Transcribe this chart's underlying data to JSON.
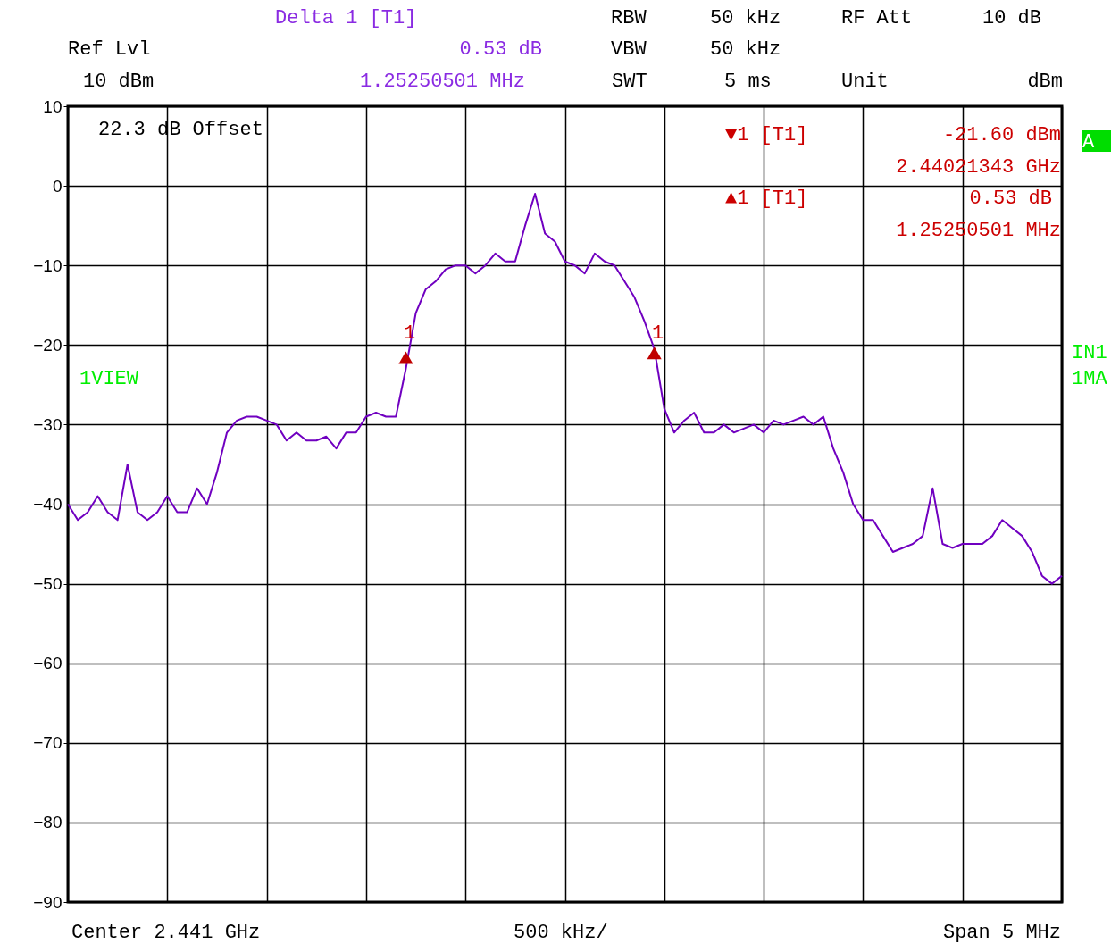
{
  "chart_data": {
    "type": "line",
    "categories": [
      null,
      null,
      null,
      null,
      null,
      null,
      null,
      null,
      null,
      null,
      null,
      null,
      null,
      null,
      null,
      null,
      null,
      null,
      null,
      null,
      null,
      null,
      null,
      null,
      null,
      null,
      null,
      null,
      null,
      null,
      null,
      null,
      null,
      null,
      null,
      null,
      null,
      null,
      null,
      null,
      null,
      null,
      null,
      null,
      null,
      null,
      null,
      null,
      null,
      null,
      null,
      null,
      null,
      null,
      null,
      null,
      null,
      null,
      null,
      null,
      null,
      null,
      null,
      null,
      null,
      null,
      null,
      null,
      null,
      null,
      null,
      null,
      null,
      null,
      null,
      null,
      null,
      null,
      null,
      null,
      null,
      null,
      null,
      null,
      null,
      null,
      null,
      null,
      null,
      null,
      null,
      null,
      null,
      null,
      null,
      null,
      null,
      null,
      null,
      null,
      null
    ],
    "series": [
      {
        "color": "#7000c0",
        "values": [
          -40,
          -42,
          -41,
          -39,
          -41,
          -42,
          -35,
          -41,
          -42,
          -41,
          -39,
          -41,
          -41,
          -38,
          -40,
          -36,
          -31,
          -29.5,
          -29,
          -29,
          -29.5,
          -30,
          -32,
          -31,
          -32,
          -32,
          -31.5,
          -33,
          -31,
          -31,
          -29,
          -28.5,
          -29,
          -29,
          -23,
          -16,
          -13,
          -12,
          -10.5,
          -10,
          -10,
          -11,
          -10,
          -8.5,
          -9.5,
          -9.5,
          -5,
          -1,
          -6,
          -7,
          -9.5,
          -10,
          -11,
          -8.5,
          -9.5,
          -10,
          -12,
          -14,
          -17,
          -20.5,
          -28,
          -31,
          -29.5,
          -28.5,
          -31,
          -31,
          -30,
          -31,
          -30.5,
          -30,
          -31,
          -29.5,
          -30,
          -29.5,
          -29,
          -30,
          -29,
          -33,
          -36,
          -40,
          -42,
          -42,
          -44,
          -46,
          -45.5,
          -45,
          -44,
          -38,
          -45,
          -45.5,
          -45,
          -45,
          -45,
          -44,
          -42,
          -43,
          -44,
          -46,
          -49,
          -50,
          -49
        ]
      },
      {
        "type": "scatter",
        "color": "#c00000",
        "marker": "triangle",
        "values": [
          null,
          null,
          null,
          null,
          null,
          null,
          null,
          null,
          null,
          null,
          null,
          null,
          null,
          null,
          null,
          null,
          null,
          null,
          null,
          null,
          null,
          null,
          null,
          null,
          null,
          null,
          null,
          null,
          null,
          null,
          null,
          null,
          null,
          null,
          -21.6,
          null,
          null,
          null,
          null,
          null,
          null,
          null,
          null,
          null,
          null,
          null,
          null,
          null,
          null,
          null,
          null,
          null,
          null,
          null,
          null,
          null,
          null,
          null,
          null,
          null,
          null,
          null,
          null,
          null,
          null,
          null,
          null,
          null,
          null,
          null,
          null,
          null,
          null,
          null,
          null,
          null,
          null,
          null,
          null,
          null,
          null,
          null,
          null,
          null,
          null,
          null,
          null,
          null,
          null,
          null,
          null,
          null,
          null,
          null,
          null,
          null,
          null,
          null,
          null,
          null,
          null
        ]
      },
      {
        "type": "scatter",
        "color": "#c00000",
        "marker": "triangle",
        "values": [
          null,
          null,
          null,
          null,
          null,
          null,
          null,
          null,
          null,
          null,
          null,
          null,
          null,
          null,
          null,
          null,
          null,
          null,
          null,
          null,
          null,
          null,
          null,
          null,
          null,
          null,
          null,
          null,
          null,
          null,
          null,
          null,
          null,
          null,
          null,
          null,
          null,
          null,
          null,
          null,
          null,
          null,
          null,
          null,
          null,
          null,
          null,
          null,
          null,
          null,
          null,
          null,
          null,
          null,
          null,
          null,
          null,
          null,
          null,
          -21,
          null,
          null,
          null,
          null,
          null,
          null,
          null,
          null,
          null,
          null,
          null,
          null,
          null,
          null,
          null,
          null,
          null,
          null,
          null,
          null,
          null,
          null,
          null,
          null,
          null,
          null,
          null,
          null,
          null,
          null,
          null,
          null,
          null,
          null,
          null,
          null,
          null,
          null,
          null,
          null,
          null
        ]
      }
    ],
    "ylim": [
      -90,
      10
    ],
    "yticks": [
      -90,
      -80,
      -70,
      -60,
      -50,
      -40,
      -30,
      -20,
      -10,
      0,
      10
    ],
    "grid": true,
    "tick_labels": "y",
    "annotations": [
      "Delta 1 [T1]",
      "Ref Lvl",
      "0.53 dB",
      "10 dBm",
      "1.25250501 MHz",
      "RBW",
      "50 kHz",
      "RF Att",
      "10 dB",
      "VBW",
      "50 kHz",
      "SWT",
      "5 ms",
      "Unit",
      "dBm",
      "22.3 dB Offset",
      "▼1 [T1]",
      "-21.60 dBm",
      "2.44021343 GHz",
      "▲1 [T1]",
      "0.53 dB",
      "1.25250501 MHz",
      "1VIEW",
      "IN1",
      "1MA",
      "A",
      "Center 2.441 GHz",
      "500 kHz/",
      "Span 5 MHz",
      "1",
      "1"
    ]
  }
}
